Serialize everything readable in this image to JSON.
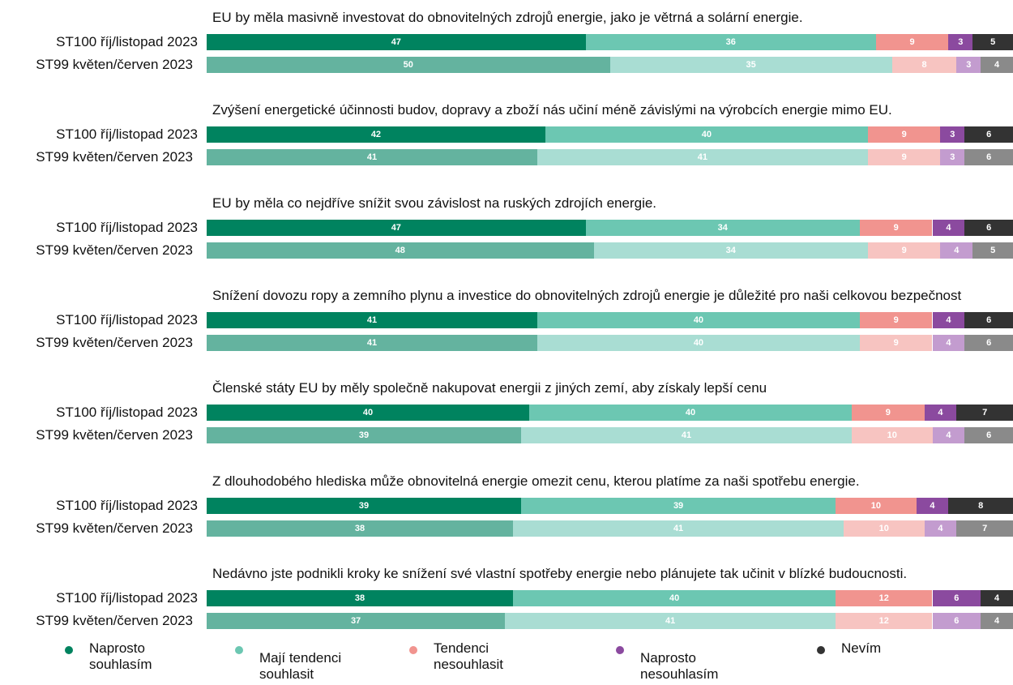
{
  "chart_data": {
    "type": "bar",
    "stacked": true,
    "orientation": "horizontal",
    "series": [
      {
        "name": "Naprosto souhlasím",
        "colors": [
          "#00835f",
          "#64b39f"
        ]
      },
      {
        "name": "Mají tendenci souhlasit",
        "colors": [
          "#6cc7b2",
          "#a9ddd3"
        ]
      },
      {
        "name": "Tendenci nesouhlasit",
        "colors": [
          "#f1948f",
          "#f7c4c1"
        ]
      },
      {
        "name": "Naprosto nesouhlasím",
        "colors": [
          "#8b4a9f",
          "#c39ccf"
        ]
      },
      {
        "name": "Nevím",
        "colors": [
          "#333333",
          "#8a8a8a"
        ]
      }
    ],
    "groups": [
      {
        "title": "EU by měla masivně investovat do obnovitelných zdrojů energie, jako je větrná a solární energie.",
        "categories": [
          "ST100 říj/listopad 2023",
          "ST99 květen/červen 2023"
        ],
        "values": [
          [
            47,
            36,
            9,
            3,
            5
          ],
          [
            50,
            35,
            8,
            3,
            4
          ]
        ]
      },
      {
        "title": "Zvýšení energetické účinnosti budov, dopravy a zboží nás učiní méně závislými na výrobcích energie mimo EU.",
        "categories": [
          "ST100 říj/listopad 2023",
          "ST99 květen/červen 2023"
        ],
        "values": [
          [
            42,
            40,
            9,
            3,
            6
          ],
          [
            41,
            41,
            9,
            3,
            6
          ]
        ]
      },
      {
        "title": "EU by měla co nejdříve snížit svou závislost na ruských zdrojích energie.",
        "categories": [
          "ST100 říj/listopad 2023",
          "ST99 květen/červen 2023"
        ],
        "values": [
          [
            47,
            34,
            9,
            4,
            6
          ],
          [
            48,
            34,
            9,
            4,
            5
          ]
        ]
      },
      {
        "title": "Snížení dovozu ropy a zemního plynu a investice do obnovitelných zdrojů energie je důležité pro naši celkovou bezpečnost",
        "categories": [
          "ST100 říj/listopad 2023",
          "ST99 květen/červen 2023"
        ],
        "values": [
          [
            41,
            40,
            9,
            4,
            6
          ],
          [
            41,
            40,
            9,
            4,
            6
          ]
        ]
      },
      {
        "title": "Členské státy EU by měly společně nakupovat energii z jiných zemí, aby získaly lepší cenu",
        "categories": [
          "ST100 říj/listopad 2023",
          "ST99 květen/červen 2023"
        ],
        "values": [
          [
            40,
            40,
            9,
            4,
            7
          ],
          [
            39,
            41,
            10,
            4,
            6
          ]
        ]
      },
      {
        "title": "Z dlouhodobého hlediska může obnovitelná energie omezit cenu, kterou platíme za naši spotřebu energie.",
        "categories": [
          "ST100 říj/listopad 2023",
          "ST99 květen/červen 2023"
        ],
        "values": [
          [
            39,
            39,
            10,
            4,
            8
          ],
          [
            38,
            41,
            10,
            4,
            7
          ]
        ]
      },
      {
        "title": "Nedávno jste podnikli kroky ke snížení své vlastní spotřeby energie nebo plánujete tak učinit v blízké budoucnosti.",
        "categories": [
          "ST100 říj/listopad 2023",
          "ST99 květen/červen 2023"
        ],
        "values": [
          [
            38,
            40,
            12,
            6,
            4
          ],
          [
            37,
            41,
            12,
            6,
            4
          ]
        ]
      }
    ]
  }
}
